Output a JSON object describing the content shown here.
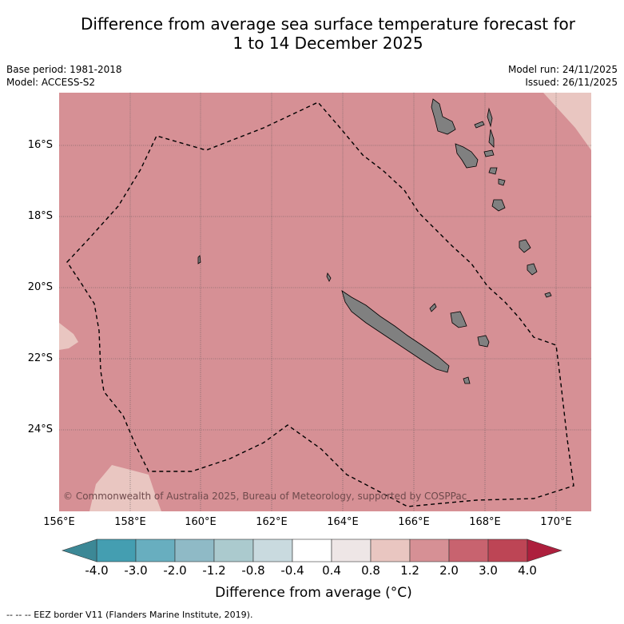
{
  "title_line1": "Difference from average sea surface temperature forecast for",
  "title_line2": "1 to 14 December 2025",
  "base_period": "Base period: 1981-2018",
  "model": "Model: ACCESS-S2",
  "model_run": "Model run: 24/11/2025",
  "issued": "Issued: 26/11/2025",
  "lat_labels": [
    "16°S",
    "18°S",
    "20°S",
    "22°S",
    "24°S"
  ],
  "lon_labels": [
    "156°E",
    "158°E",
    "160°E",
    "162°E",
    "164°E",
    "166°E",
    "168°E",
    "170°E"
  ],
  "copyright": "© Commonwealth of Australia 2025, Bureau of Meteorology, supported by COSPPac",
  "colorbar": {
    "ticks": [
      "-4.0",
      "-3.0",
      "-2.0",
      "-1.2",
      "-0.8",
      "-0.4",
      "0.4",
      "0.8",
      "1.2",
      "2.0",
      "3.0",
      "4.0"
    ],
    "colors": [
      "#449eb1",
      "#68aebf",
      "#8fbac6",
      "#abcace",
      "#c9dadf",
      "#ffffff",
      "#eee6e6",
      "#e9c6c1",
      "#d69095",
      "#c8636f",
      "#bd4555"
    ],
    "under_color": "#3c8896",
    "over_color": "#ad1f3d",
    "label": "Difference from average (°C)"
  },
  "legend_note": "-- -- -- EEZ border V11 (Flanders Marine Institute, 2019).",
  "map_colors": {
    "dominant": "#d69095",
    "light_patch": "#e9c6c1",
    "land": "#808080"
  }
}
